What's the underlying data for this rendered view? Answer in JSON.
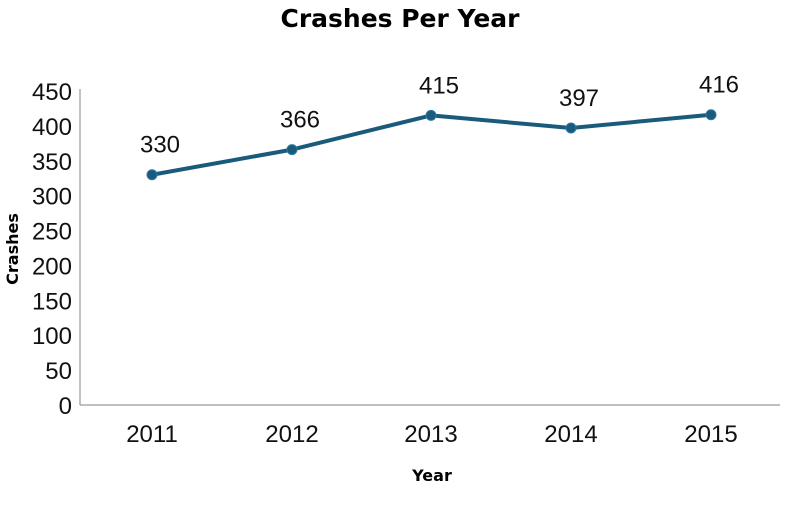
{
  "chart_data": {
    "type": "line",
    "title": "Crashes Per Year",
    "xlabel": "Year",
    "ylabel": "Crashes",
    "categories": [
      "2011",
      "2012",
      "2013",
      "2014",
      "2015"
    ],
    "series": [
      {
        "values": [
          330,
          366,
          415,
          397,
          416
        ],
        "color": "#1a5a7a"
      }
    ],
    "data_labels": [
      "330",
      "366",
      "415",
      "397",
      "416"
    ],
    "ylim": [
      0,
      450
    ],
    "yticks": [
      "0",
      "50",
      "100",
      "150",
      "200",
      "250",
      "300",
      "350",
      "400",
      "450"
    ],
    "grid": false,
    "legend": "none",
    "axis_color": "#9a9a9a"
  }
}
